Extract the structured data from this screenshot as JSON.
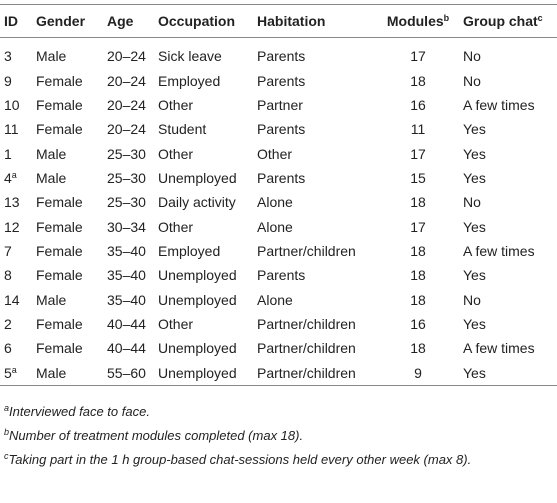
{
  "table": {
    "header": [
      {
        "label": "ID"
      },
      {
        "label": "Gender"
      },
      {
        "label": "Age"
      },
      {
        "label": "Occupation"
      },
      {
        "label": "Habitation"
      },
      {
        "label": "Modules",
        "sup": "b"
      },
      {
        "label": "Group chat",
        "sup": "c"
      }
    ],
    "rows": [
      {
        "id": 3,
        "gender": "Male",
        "age": "20–24",
        "occupation": "Sick leave",
        "habitation": "Parents",
        "modules": 17,
        "group_chat": "No"
      },
      {
        "id": 9,
        "gender": "Female",
        "age": "20–24",
        "occupation": "Employed",
        "habitation": "Parents",
        "modules": 18,
        "group_chat": "No"
      },
      {
        "id": 10,
        "gender": "Female",
        "age": "20–24",
        "occupation": "Other",
        "habitation": "Partner",
        "modules": 16,
        "group_chat": "A few times"
      },
      {
        "id": 11,
        "gender": "Female",
        "age": "20–24",
        "occupation": "Student",
        "habitation": "Parents",
        "modules": 11,
        "group_chat": "Yes"
      },
      {
        "id": 1,
        "gender": "Male",
        "age": "25–30",
        "occupation": "Other",
        "habitation": "Other",
        "modules": 17,
        "group_chat": "Yes"
      },
      {
        "id": 4,
        "id_note": "a",
        "gender": "Male",
        "age": "25–30",
        "occupation": "Unemployed",
        "habitation": "Parents",
        "modules": 15,
        "group_chat": "Yes"
      },
      {
        "id": 13,
        "gender": "Female",
        "age": "25–30",
        "occupation": "Daily activity",
        "habitation": "Alone",
        "modules": 18,
        "group_chat": "No"
      },
      {
        "id": 12,
        "gender": "Female",
        "age": "30–34",
        "occupation": "Other",
        "habitation": "Alone",
        "modules": 17,
        "group_chat": "Yes"
      },
      {
        "id": 7,
        "gender": "Female",
        "age": "35–40",
        "occupation": "Employed",
        "habitation": "Partner/children",
        "modules": 18,
        "group_chat": "A few times"
      },
      {
        "id": 8,
        "gender": "Female",
        "age": "35–40",
        "occupation": "Unemployed",
        "habitation": "Parents",
        "modules": 18,
        "group_chat": "Yes"
      },
      {
        "id": 14,
        "gender": "Male",
        "age": "35–40",
        "occupation": "Unemployed",
        "habitation": "Alone",
        "modules": 18,
        "group_chat": "No"
      },
      {
        "id": 2,
        "gender": "Female",
        "age": "40–44",
        "occupation": "Other",
        "habitation": "Partner/children",
        "modules": 16,
        "group_chat": "Yes"
      },
      {
        "id": 6,
        "gender": "Female",
        "age": "40–44",
        "occupation": "Unemployed",
        "habitation": "Partner/children",
        "modules": 18,
        "group_chat": "A few times"
      },
      {
        "id": 5,
        "id_note": "a",
        "gender": "Male",
        "age": "55–60",
        "occupation": "Unemployed",
        "habitation": "Partner/children",
        "modules": 9,
        "group_chat": "Yes"
      }
    ],
    "footnotes": [
      {
        "mark": "a",
        "text": "Interviewed face to face."
      },
      {
        "mark": "b",
        "text": "Number of treatment modules completed (max 18)."
      },
      {
        "mark": "c",
        "text": "Taking part in the 1 h group-based chat-sessions held every other week (max 8)."
      }
    ]
  }
}
